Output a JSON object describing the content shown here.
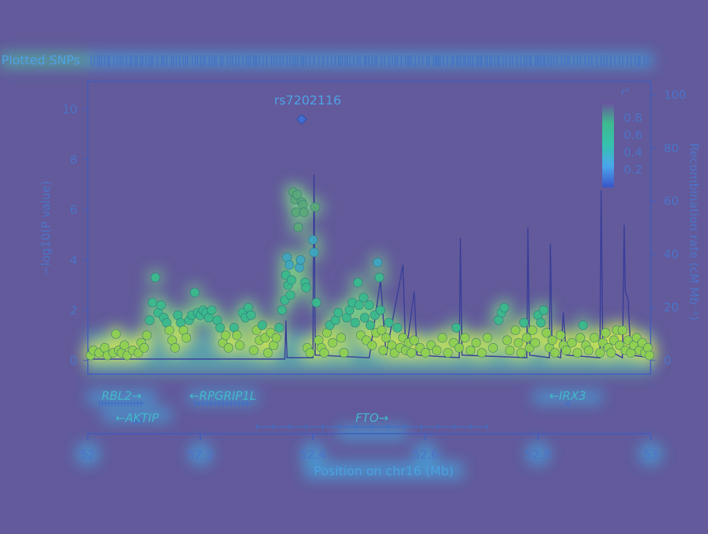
{
  "header": {
    "plotted_snps_label": "Plotted SNPs"
  },
  "lead_snp": {
    "name": "rs7202116",
    "position": 52.38,
    "neglog10p": 9.6
  },
  "legend": {
    "title": "r²",
    "ticks": [
      "0.8",
      "0.6",
      "0.4",
      "0.2"
    ],
    "colors": [
      "#6a4fa0",
      "#3fb98f",
      "#35c2ad",
      "#4aa6ec",
      "#3a55c8"
    ]
  },
  "colors": {
    "background": "#625a9b",
    "axis": "#4b74c9",
    "recomb_line": "#3a3f99",
    "hot": "#f4e400",
    "mid": "#47e6a6"
  },
  "chart_data": {
    "type": "scatter",
    "title": "",
    "xlabel": "Position on chr16 (Mb)",
    "ylabel": "−log10(P value)",
    "y2label": "Recombination rate (cM Mb⁻¹)",
    "xlim": [
      52,
      53
    ],
    "ylim": [
      0,
      11
    ],
    "y2lim": [
      0,
      110
    ],
    "x_ticks": [
      "52",
      "52.2",
      "52.4",
      "52.6",
      "52.8",
      "53"
    ],
    "y_ticks": [
      "0",
      "2",
      "4",
      "6",
      "8",
      "10"
    ],
    "y2_ticks": [
      "0",
      "20",
      "40",
      "60",
      "80",
      "100"
    ],
    "grid": false,
    "legend_position": "top-right",
    "snp_points": [
      [
        52.005,
        0.2
      ],
      [
        52.01,
        0.4
      ],
      [
        52.02,
        0.3
      ],
      [
        52.03,
        0.5
      ],
      [
        52.035,
        0.2
      ],
      [
        52.045,
        0.3
      ],
      [
        52.05,
        1.05
      ],
      [
        52.055,
        0.4
      ],
      [
        52.06,
        0.3
      ],
      [
        52.065,
        0.6
      ],
      [
        52.07,
        0.2
      ],
      [
        52.08,
        0.4
      ],
      [
        52.09,
        0.3
      ],
      [
        52.095,
        0.7
      ],
      [
        52.1,
        0.5
      ],
      [
        52.105,
        1.0
      ],
      [
        52.11,
        1.6
      ],
      [
        52.115,
        2.3
      ],
      [
        52.12,
        3.3
      ],
      [
        52.125,
        1.9
      ],
      [
        52.13,
        2.2
      ],
      [
        52.135,
        1.7
      ],
      [
        52.14,
        1.5
      ],
      [
        52.145,
        1.2
      ],
      [
        52.15,
        0.8
      ],
      [
        52.155,
        0.5
      ],
      [
        52.16,
        1.8
      ],
      [
        52.165,
        1.5
      ],
      [
        52.17,
        1.2
      ],
      [
        52.175,
        0.9
      ],
      [
        52.18,
        1.6
      ],
      [
        52.185,
        1.8
      ],
      [
        52.19,
        2.7
      ],
      [
        52.195,
        1.9
      ],
      [
        52.2,
        1.8
      ],
      [
        52.205,
        2.0
      ],
      [
        52.21,
        1.9
      ],
      [
        52.215,
        1.7
      ],
      [
        52.22,
        2.0
      ],
      [
        52.23,
        1.6
      ],
      [
        52.235,
        1.3
      ],
      [
        52.24,
        0.7
      ],
      [
        52.245,
        1.0
      ],
      [
        52.25,
        0.5
      ],
      [
        52.26,
        1.3
      ],
      [
        52.265,
        1.0
      ],
      [
        52.27,
        0.6
      ],
      [
        52.275,
        1.9
      ],
      [
        52.28,
        1.7
      ],
      [
        52.285,
        2.1
      ],
      [
        52.29,
        1.8
      ],
      [
        52.295,
        0.4
      ],
      [
        52.3,
        1.2
      ],
      [
        52.305,
        0.8
      ],
      [
        52.31,
        1.4
      ],
      [
        52.315,
        0.9
      ],
      [
        52.32,
        0.3
      ],
      [
        52.325,
        1.1
      ],
      [
        52.33,
        0.6
      ],
      [
        52.335,
        0.9
      ],
      [
        52.34,
        1.3
      ],
      [
        52.345,
        2.0
      ],
      [
        52.35,
        2.4
      ],
      [
        52.352,
        3.4
      ],
      [
        52.354,
        4.1
      ],
      [
        52.356,
        3.0
      ],
      [
        52.358,
        3.8
      ],
      [
        52.36,
        2.6
      ],
      [
        52.362,
        3.2
      ],
      [
        52.365,
        6.7
      ],
      [
        52.368,
        6.4
      ],
      [
        52.37,
        5.9
      ],
      [
        52.372,
        6.6
      ],
      [
        52.374,
        5.3
      ],
      [
        52.376,
        3.7
      ],
      [
        52.378,
        4.0
      ],
      [
        52.38,
        6.3
      ],
      [
        52.382,
        6.2
      ],
      [
        52.384,
        5.9
      ],
      [
        52.386,
        3.1
      ],
      [
        52.388,
        2.9
      ],
      [
        52.39,
        0.5
      ],
      [
        52.395,
        0.3
      ],
      [
        52.4,
        4.8
      ],
      [
        52.402,
        4.3
      ],
      [
        52.404,
        6.1
      ],
      [
        52.406,
        2.3
      ],
      [
        52.41,
        0.8
      ],
      [
        52.415,
        0.5
      ],
      [
        52.42,
        0.3
      ],
      [
        52.425,
        1.1
      ],
      [
        52.43,
        1.4
      ],
      [
        52.435,
        0.7
      ],
      [
        52.44,
        1.6
      ],
      [
        52.445,
        1.9
      ],
      [
        52.45,
        0.9
      ],
      [
        52.455,
        0.3
      ],
      [
        52.46,
        1.7
      ],
      [
        52.465,
        2.0
      ],
      [
        52.47,
        2.3
      ],
      [
        52.475,
        1.5
      ],
      [
        52.48,
        3.1
      ],
      [
        52.482,
        2.2
      ],
      [
        52.485,
        1.0
      ],
      [
        52.49,
        2.5
      ],
      [
        52.492,
        1.7
      ],
      [
        52.495,
        0.8
      ],
      [
        52.5,
        2.2
      ],
      [
        52.502,
        1.4
      ],
      [
        52.505,
        0.6
      ],
      [
        52.51,
        1.8
      ],
      [
        52.512,
        1.1
      ],
      [
        52.515,
        3.9
      ],
      [
        52.518,
        3.3
      ],
      [
        52.52,
        2.0
      ],
      [
        52.522,
        1.2
      ],
      [
        52.525,
        0.4
      ],
      [
        52.53,
        0.9
      ],
      [
        52.535,
        1.5
      ],
      [
        52.54,
        0.6
      ],
      [
        52.545,
        0.3
      ],
      [
        52.55,
        1.3
      ],
      [
        52.555,
        0.5
      ],
      [
        52.56,
        0.9
      ],
      [
        52.565,
        0.4
      ],
      [
        52.57,
        0.7
      ],
      [
        52.575,
        0.3
      ],
      [
        52.58,
        0.8
      ],
      [
        52.59,
        0.5
      ],
      [
        52.6,
        0.3
      ],
      [
        52.61,
        0.6
      ],
      [
        52.62,
        0.4
      ],
      [
        52.63,
        0.9
      ],
      [
        52.64,
        0.3
      ],
      [
        52.65,
        0.7
      ],
      [
        52.655,
        1.3
      ],
      [
        52.66,
        0.5
      ],
      [
        52.67,
        0.9
      ],
      [
        52.68,
        0.4
      ],
      [
        52.69,
        0.7
      ],
      [
        52.7,
        0.3
      ],
      [
        52.71,
        0.9
      ],
      [
        52.72,
        0.5
      ],
      [
        52.73,
        1.6
      ],
      [
        52.735,
        1.9
      ],
      [
        52.74,
        2.1
      ],
      [
        52.745,
        0.8
      ],
      [
        52.75,
        0.4
      ],
      [
        52.76,
        1.2
      ],
      [
        52.765,
        0.7
      ],
      [
        52.77,
        0.3
      ],
      [
        52.775,
        1.5
      ],
      [
        52.78,
        0.9
      ],
      [
        52.785,
        0.5
      ],
      [
        52.79,
        1.2
      ],
      [
        52.795,
        0.7
      ],
      [
        52.8,
        1.8
      ],
      [
        52.805,
        1.5
      ],
      [
        52.81,
        2.0
      ],
      [
        52.815,
        1.1
      ],
      [
        52.82,
        0.5
      ],
      [
        52.825,
        0.8
      ],
      [
        52.83,
        0.3
      ],
      [
        52.84,
        1.0
      ],
      [
        52.845,
        0.6
      ],
      [
        52.85,
        0.4
      ],
      [
        52.86,
        0.7
      ],
      [
        52.87,
        0.3
      ],
      [
        52.875,
        0.9
      ],
      [
        52.88,
        1.4
      ],
      [
        52.885,
        0.6
      ],
      [
        52.89,
        0.4
      ],
      [
        52.9,
        0.9
      ],
      [
        52.91,
        0.3
      ],
      [
        52.915,
        0.7
      ],
      [
        52.92,
        1.1
      ],
      [
        52.925,
        0.5
      ],
      [
        52.93,
        0.3
      ],
      [
        52.935,
        0.8
      ],
      [
        52.94,
        1.2
      ],
      [
        52.945,
        0.6
      ],
      [
        52.95,
        1.2
      ],
      [
        52.955,
        0.4
      ],
      [
        52.96,
        0.8
      ],
      [
        52.965,
        0.3
      ],
      [
        52.97,
        0.6
      ],
      [
        52.975,
        0.9
      ],
      [
        52.98,
        0.4
      ],
      [
        52.985,
        0.7
      ],
      [
        52.99,
        0.3
      ],
      [
        52.995,
        0.5
      ],
      [
        52.998,
        0.2
      ]
    ],
    "recombination": [
      [
        52.0,
        0.5
      ],
      [
        52.35,
        0.5
      ],
      [
        52.352,
        15
      ],
      [
        52.354,
        1
      ],
      [
        52.4,
        1
      ],
      [
        52.402,
        70
      ],
      [
        52.404,
        2
      ],
      [
        52.5,
        1
      ],
      [
        52.52,
        30
      ],
      [
        52.53,
        2
      ],
      [
        52.56,
        36
      ],
      [
        52.565,
        2
      ],
      [
        52.58,
        26
      ],
      [
        52.585,
        2
      ],
      [
        52.66,
        1
      ],
      [
        52.662,
        46
      ],
      [
        52.665,
        2
      ],
      [
        52.78,
        1
      ],
      [
        52.782,
        50
      ],
      [
        52.785,
        2
      ],
      [
        52.82,
        1
      ],
      [
        52.822,
        44
      ],
      [
        52.825,
        2
      ],
      [
        52.84,
        1
      ],
      [
        52.845,
        18
      ],
      [
        52.85,
        2
      ],
      [
        52.91,
        1
      ],
      [
        52.912,
        64
      ],
      [
        52.915,
        5
      ],
      [
        52.95,
        1
      ],
      [
        52.953,
        51
      ],
      [
        52.955,
        26
      ],
      [
        52.96,
        23
      ],
      [
        52.965,
        2
      ],
      [
        53.0,
        1
      ]
    ],
    "genes": [
      {
        "name": "RBL2",
        "label": "RBL2→",
        "start": 52.02,
        "end": 52.1,
        "row": 0
      },
      {
        "name": "AKTIP",
        "label": "←AKTIP",
        "start": 52.08,
        "end": 52.095,
        "row": 1
      },
      {
        "name": "RPGRIP1L",
        "label": "←RPGRIP1L",
        "start": 52.19,
        "end": 52.29,
        "row": 0
      },
      {
        "name": "FTO",
        "label": "FTO→",
        "start": 52.3,
        "end": 52.71,
        "row": 2
      },
      {
        "name": "IRX3",
        "label": "←IRX3",
        "start": 52.85,
        "end": 52.855,
        "row": 0
      }
    ]
  }
}
